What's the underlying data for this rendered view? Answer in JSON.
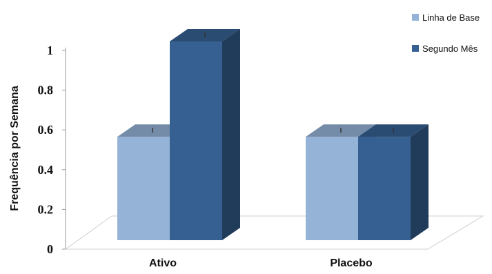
{
  "chart_data": {
    "type": "bar",
    "style": "3d-clustered-column",
    "categories": [
      "Ativo",
      "Placebo"
    ],
    "series": [
      {
        "name": "Linha de Base",
        "values": [
          0.52,
          0.52
        ],
        "color": "#95b3d7"
      },
      {
        "name": "Segundo Mês",
        "values": [
          1.0,
          0.52
        ],
        "color": "#366092"
      }
    ],
    "ylabel": "Frequência por Semana",
    "ylim": [
      0,
      1
    ],
    "yticks": [
      "0",
      "0.2",
      "0.4",
      "0.6",
      "0.8",
      "1"
    ],
    "grid": false,
    "legend_position": "top-right",
    "error_bars": true
  }
}
